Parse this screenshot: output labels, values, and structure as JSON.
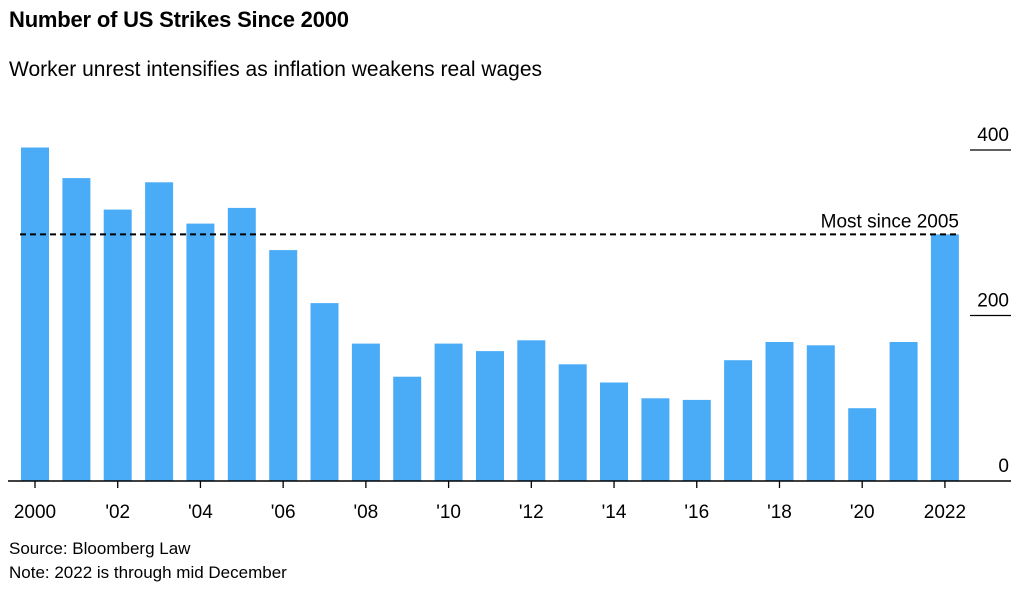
{
  "title": "Number of US Strikes Since 2000",
  "subtitle": "Worker unrest intensifies as inflation weakens real wages",
  "source": "Source: Bloomberg Law",
  "note": "Note: 2022 is through mid December",
  "colors": {
    "bar": "#4aabf7",
    "axis": "#000000",
    "reference": "#000000"
  },
  "chart_data": {
    "type": "bar",
    "x": [
      2000,
      2001,
      2002,
      2003,
      2004,
      2005,
      2006,
      2007,
      2008,
      2009,
      2010,
      2011,
      2012,
      2013,
      2014,
      2015,
      2016,
      2017,
      2018,
      2019,
      2020,
      2021,
      2022
    ],
    "values": [
      403,
      366,
      328,
      361,
      311,
      330,
      279,
      215,
      166,
      126,
      166,
      157,
      170,
      141,
      119,
      100,
      98,
      146,
      168,
      164,
      88,
      168,
      298
    ],
    "tick_labels": [
      "2000",
      "'02",
      "'04",
      "'06",
      "'08",
      "'10",
      "'12",
      "'14",
      "'16",
      "'18",
      "'20",
      "2022"
    ],
    "y_ticks": [
      0,
      200,
      400
    ],
    "ylim": [
      0,
      400
    ],
    "reference_line": {
      "value": 298,
      "label": "Most since 2005"
    },
    "y_axis_position": "right",
    "grid": false
  }
}
